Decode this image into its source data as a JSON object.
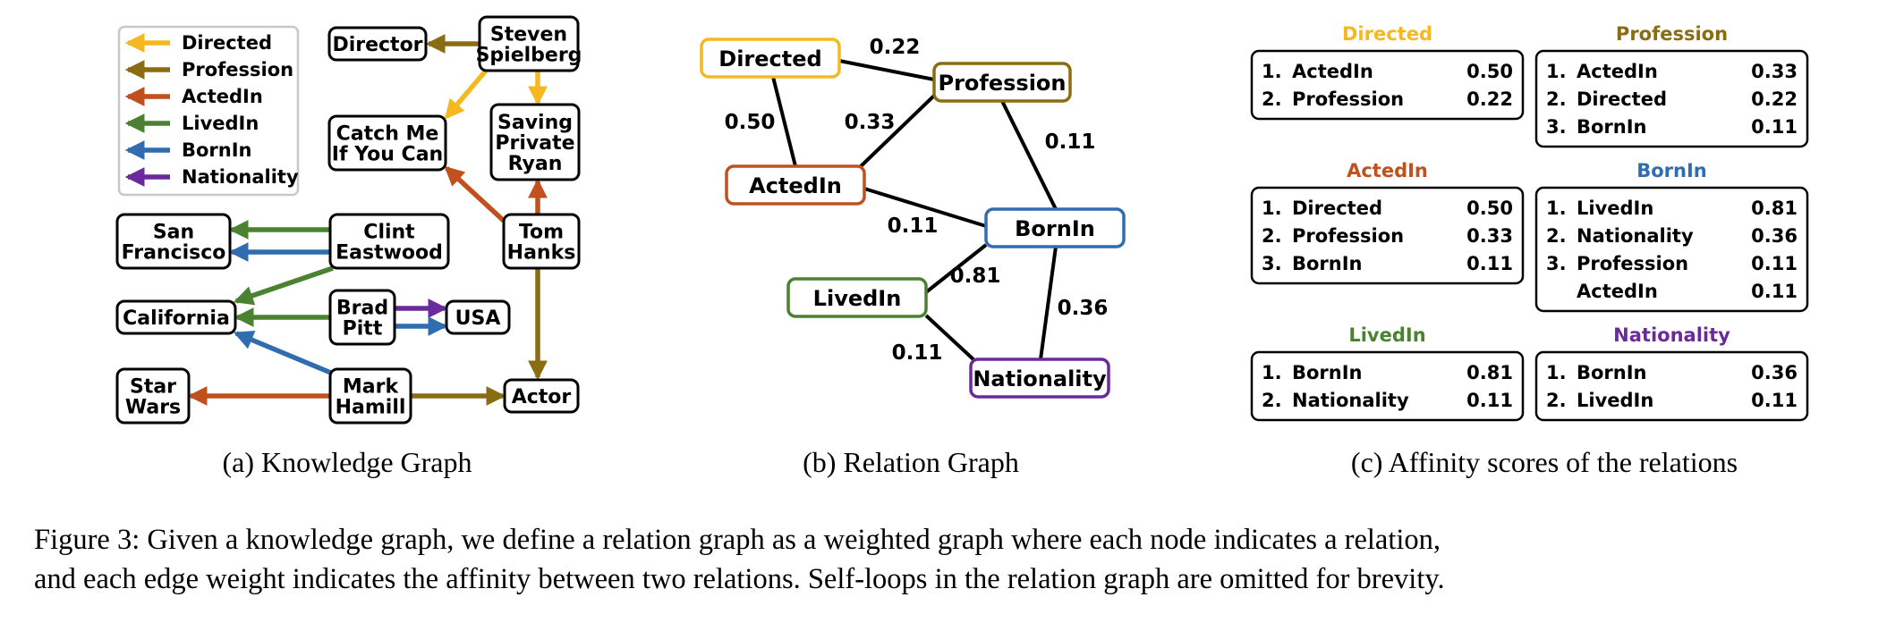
{
  "colors": {
    "Directed": "#f5b821",
    "Profession": "#8a6d12",
    "ActedIn": "#c0501c",
    "LivedIn": "#4a8231",
    "BornIn": "#2f6cb0",
    "Nationality": "#6a2a9c"
  },
  "legend": [
    {
      "label": "Directed",
      "rel": "Directed"
    },
    {
      "label": "Profession",
      "rel": "Profession"
    },
    {
      "label": "ActedIn",
      "rel": "ActedIn"
    },
    {
      "label": "LivedIn",
      "rel": "LivedIn"
    },
    {
      "label": "BornIn",
      "rel": "BornIn"
    },
    {
      "label": "Nationality",
      "rel": "Nationality"
    }
  ],
  "kg": {
    "entities": [
      {
        "id": "director",
        "lines": [
          "Director"
        ]
      },
      {
        "id": "spielberg",
        "lines": [
          "Steven",
          "Spielberg"
        ]
      },
      {
        "id": "catchme",
        "lines": [
          "Catch Me",
          "If You Can"
        ]
      },
      {
        "id": "spr",
        "lines": [
          "Saving",
          "Private",
          "Ryan"
        ]
      },
      {
        "id": "sf",
        "lines": [
          "San",
          "Francisco"
        ]
      },
      {
        "id": "eastwood",
        "lines": [
          "Clint",
          "Eastwood"
        ]
      },
      {
        "id": "hanks",
        "lines": [
          "Tom",
          "Hanks"
        ]
      },
      {
        "id": "california",
        "lines": [
          "California"
        ]
      },
      {
        "id": "pitt",
        "lines": [
          "Brad",
          "Pitt"
        ]
      },
      {
        "id": "usa",
        "lines": [
          "USA"
        ]
      },
      {
        "id": "starwars",
        "lines": [
          "Star",
          "Wars"
        ]
      },
      {
        "id": "hamill",
        "lines": [
          "Mark",
          "Hamill"
        ]
      },
      {
        "id": "actor",
        "lines": [
          "Actor"
        ]
      }
    ],
    "edges": [
      {
        "from": "spielberg",
        "to": "director",
        "rel": "Profession"
      },
      {
        "from": "spielberg",
        "to": "catchme",
        "rel": "Directed"
      },
      {
        "from": "spielberg",
        "to": "spr",
        "rel": "Directed"
      },
      {
        "from": "hanks",
        "to": "catchme",
        "rel": "ActedIn"
      },
      {
        "from": "hanks",
        "to": "spr",
        "rel": "ActedIn"
      },
      {
        "from": "hanks",
        "to": "actor",
        "rel": "Profession"
      },
      {
        "from": "eastwood",
        "to": "sf",
        "rel": "LivedIn"
      },
      {
        "from": "eastwood",
        "to": "sf",
        "rel": "BornIn"
      },
      {
        "from": "eastwood",
        "to": "california",
        "rel": "LivedIn"
      },
      {
        "from": "pitt",
        "to": "california",
        "rel": "LivedIn"
      },
      {
        "from": "pitt",
        "to": "usa",
        "rel": "Nationality"
      },
      {
        "from": "pitt",
        "to": "usa",
        "rel": "BornIn"
      },
      {
        "from": "hamill",
        "to": "california",
        "rel": "BornIn"
      },
      {
        "from": "hamill",
        "to": "starwars",
        "rel": "ActedIn"
      },
      {
        "from": "hamill",
        "to": "actor",
        "rel": "Profession"
      }
    ],
    "subcaption": "(a) Knowledge Graph"
  },
  "relation_graph": {
    "nodes": [
      {
        "id": "Directed",
        "label": "Directed"
      },
      {
        "id": "Profession",
        "label": "Profession"
      },
      {
        "id": "ActedIn",
        "label": "ActedIn"
      },
      {
        "id": "BornIn",
        "label": "BornIn"
      },
      {
        "id": "LivedIn",
        "label": "LivedIn"
      },
      {
        "id": "Nationality",
        "label": "Nationality"
      }
    ],
    "edges": [
      {
        "a": "Directed",
        "b": "Profession",
        "weight": "0.22"
      },
      {
        "a": "Directed",
        "b": "ActedIn",
        "weight": "0.50"
      },
      {
        "a": "ActedIn",
        "b": "Profession",
        "weight": "0.33"
      },
      {
        "a": "Profession",
        "b": "BornIn",
        "weight": "0.11"
      },
      {
        "a": "ActedIn",
        "b": "BornIn",
        "weight": "0.11"
      },
      {
        "a": "LivedIn",
        "b": "BornIn",
        "weight": "0.81"
      },
      {
        "a": "BornIn",
        "b": "Nationality",
        "weight": "0.36"
      },
      {
        "a": "LivedIn",
        "b": "Nationality",
        "weight": "0.11"
      }
    ],
    "subcaption": "(b) Relation Graph"
  },
  "affinity": {
    "panels": [
      {
        "title": "Directed",
        "rel": "Directed",
        "rows": [
          {
            "rank": "1.",
            "rel": "ActedIn",
            "score": "0.50"
          },
          {
            "rank": "2.",
            "rel": "Profession",
            "score": "0.22"
          }
        ]
      },
      {
        "title": "Profession",
        "rel": "Profession",
        "rows": [
          {
            "rank": "1.",
            "rel": "ActedIn",
            "score": "0.33"
          },
          {
            "rank": "2.",
            "rel": "Directed",
            "score": "0.22"
          },
          {
            "rank": "3.",
            "rel": "BornIn",
            "score": "0.11"
          }
        ]
      },
      {
        "title": "ActedIn",
        "rel": "ActedIn",
        "rows": [
          {
            "rank": "1.",
            "rel": "Directed",
            "score": "0.50"
          },
          {
            "rank": "2.",
            "rel": "Profession",
            "score": "0.33"
          },
          {
            "rank": "3.",
            "rel": "BornIn",
            "score": "0.11"
          }
        ]
      },
      {
        "title": "BornIn",
        "rel": "BornIn",
        "rows": [
          {
            "rank": "1.",
            "rel": "LivedIn",
            "score": "0.81"
          },
          {
            "rank": "2.",
            "rel": "Nationality",
            "score": "0.36"
          },
          {
            "rank": "3.",
            "rel": "Profession",
            "score": "0.11"
          },
          {
            "rank": "",
            "rel": "ActedIn",
            "score": "0.11"
          }
        ]
      },
      {
        "title": "LivedIn",
        "rel": "LivedIn",
        "rows": [
          {
            "rank": "1.",
            "rel": "BornIn",
            "score": "0.81"
          },
          {
            "rank": "2.",
            "rel": "Nationality",
            "score": "0.11"
          }
        ]
      },
      {
        "title": "Nationality",
        "rel": "Nationality",
        "rows": [
          {
            "rank": "1.",
            "rel": "BornIn",
            "score": "0.36"
          },
          {
            "rank": "2.",
            "rel": "LivedIn",
            "score": "0.11"
          }
        ]
      }
    ],
    "subcaption": "(c) Affinity scores of the relations"
  },
  "caption": {
    "line1": "Figure 3: Given a knowledge graph, we define a relation graph as a weighted graph where each node indicates a relation,",
    "line2": "and each edge weight indicates the affinity between two relations. Self-loops in the relation graph are omitted for brevity."
  }
}
